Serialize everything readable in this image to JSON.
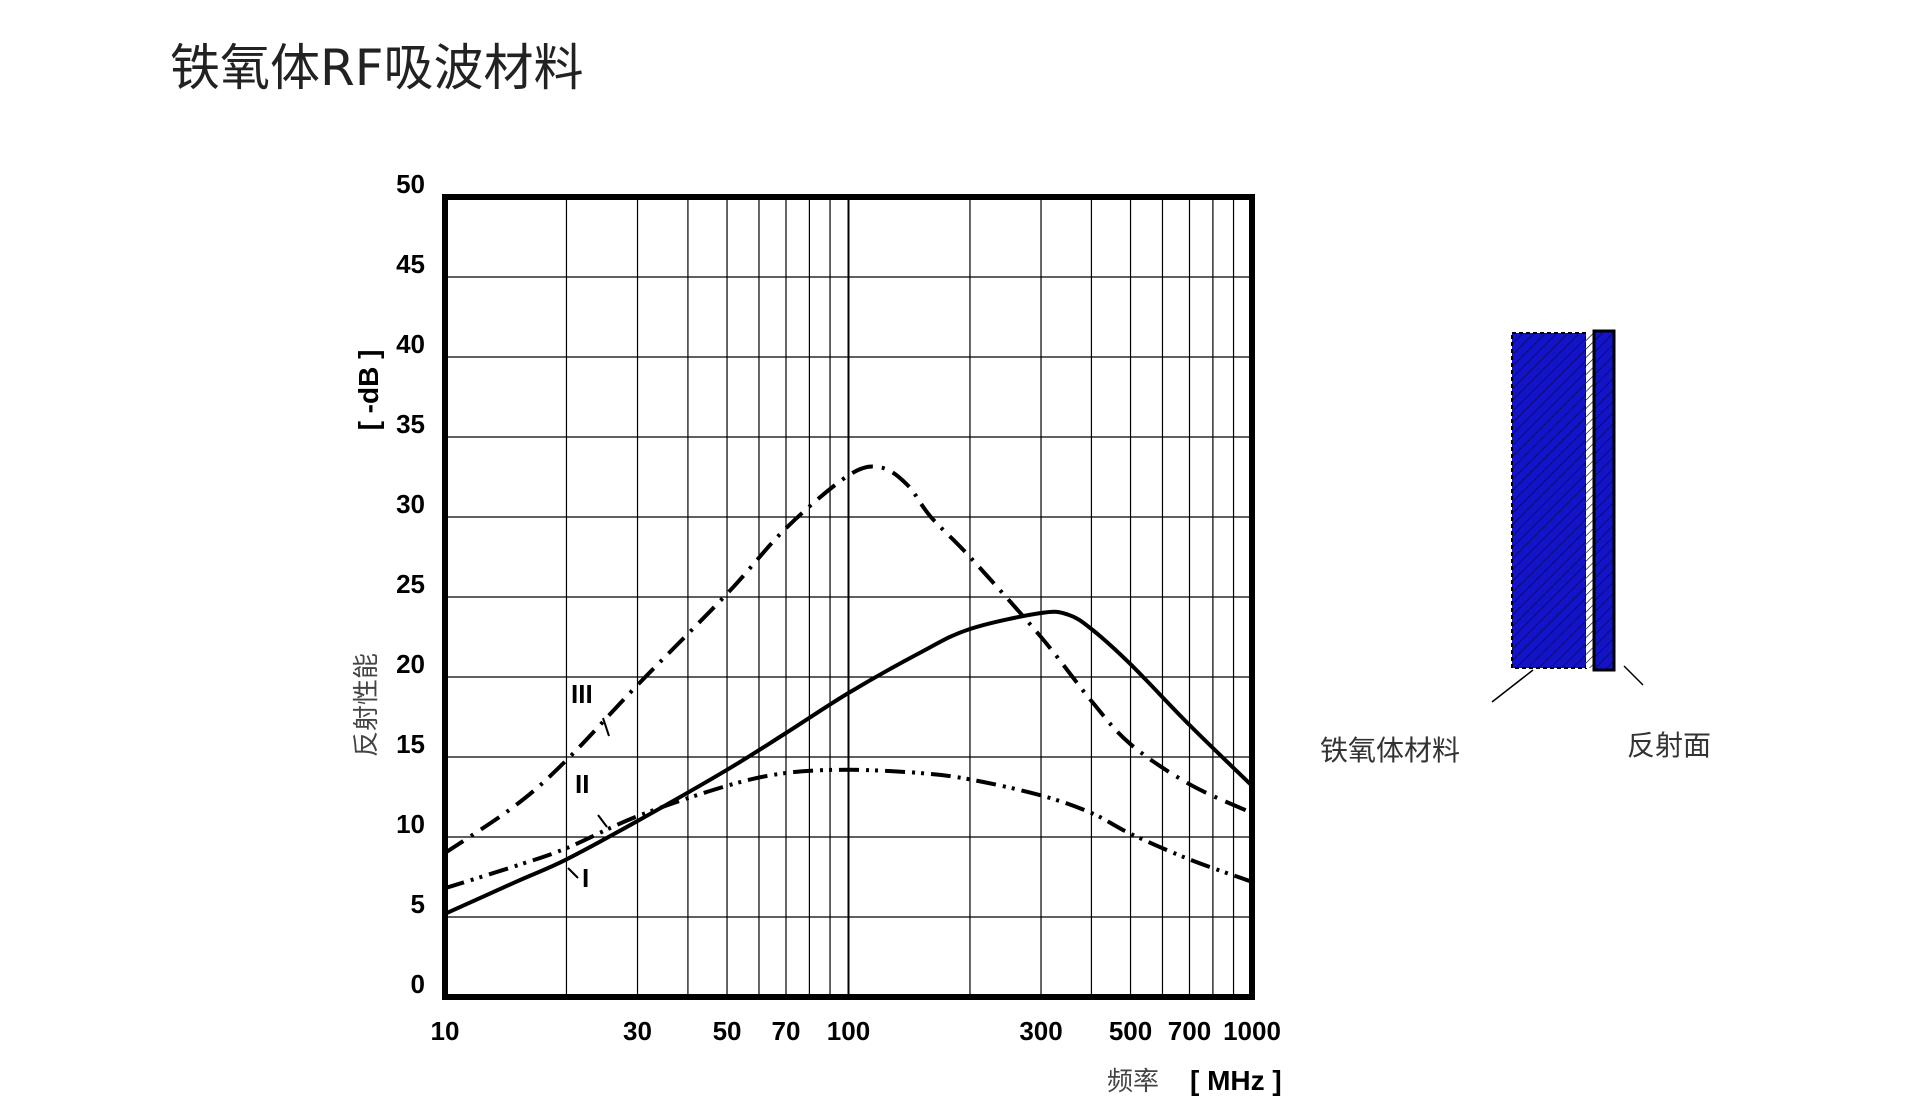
{
  "slide": {
    "title": "铁氧体RF吸波材料"
  },
  "chart_data": {
    "type": "line",
    "title": "",
    "x_axis": {
      "label": "频率",
      "unit": "[ MHz ]",
      "scale": "log",
      "range": [
        10,
        1000
      ],
      "tick_labels": [
        "10",
        "30",
        "50",
        "70",
        "100",
        "300",
        "500",
        "700",
        "1000"
      ],
      "tick_values": [
        10,
        30,
        50,
        70,
        100,
        300,
        500,
        700,
        1000
      ]
    },
    "y_axis": {
      "label": "反射性能",
      "unit": "[ -dB ]",
      "range": [
        0,
        50
      ],
      "tick_labels": [
        "0",
        "5",
        "10",
        "15",
        "20",
        "25",
        "30",
        "35",
        "40",
        "45",
        "50"
      ],
      "tick_values": [
        0,
        5,
        10,
        15,
        20,
        25,
        30,
        35,
        40,
        45,
        50
      ]
    },
    "grid": true,
    "series": [
      {
        "name": "I",
        "style": "solid",
        "x": [
          10,
          15,
          20,
          30,
          50,
          70,
          100,
          150,
          200,
          300,
          350,
          400,
          500,
          700,
          1000
        ],
        "y": [
          5.2,
          7.2,
          8.6,
          11.0,
          14.2,
          16.5,
          19.0,
          21.5,
          23.0,
          24.0,
          23.9,
          23.0,
          20.8,
          17.0,
          13.2
        ]
      },
      {
        "name": "II",
        "style": "dash-dot-dot",
        "x": [
          10,
          15,
          20,
          30,
          50,
          70,
          100,
          150,
          200,
          300,
          400,
          500,
          700,
          1000
        ],
        "y": [
          6.8,
          8.2,
          9.3,
          11.3,
          13.2,
          14.0,
          14.2,
          14.0,
          13.6,
          12.6,
          11.5,
          10.2,
          8.6,
          7.2
        ]
      },
      {
        "name": "III",
        "style": "dash-dot",
        "x": [
          10,
          15,
          20,
          30,
          50,
          70,
          100,
          120,
          140,
          160,
          200,
          300,
          400,
          500,
          700,
          1000
        ],
        "y": [
          9.0,
          12.0,
          14.8,
          19.5,
          25.2,
          29.3,
          32.6,
          33.1,
          32.0,
          30.0,
          27.5,
          22.5,
          18.5,
          15.8,
          13.3,
          11.5
        ]
      }
    ]
  },
  "diagram": {
    "label_ferrite": "铁氧体材料",
    "label_reflector": "反射面",
    "colors": {
      "ferrite": "#1313c8",
      "outline": "#000000"
    }
  }
}
